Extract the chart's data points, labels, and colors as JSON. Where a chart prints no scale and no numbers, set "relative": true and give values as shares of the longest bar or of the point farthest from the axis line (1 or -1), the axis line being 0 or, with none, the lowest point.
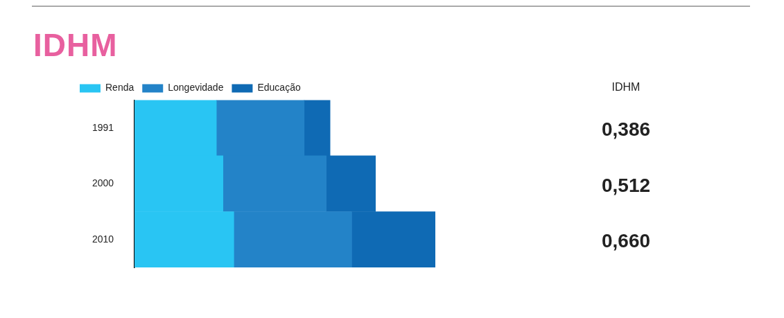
{
  "chart_data": {
    "type": "bar",
    "title": "IDHM",
    "orientation": "horizontal",
    "stacked": true,
    "relative": true,
    "legend": "top left",
    "categories": [
      "1991",
      "2000",
      "2010"
    ],
    "series": [
      {
        "name": "Renda",
        "color": "#29c5f3",
        "values": [
          0.272,
          0.294,
          0.33
        ]
      },
      {
        "name": "Longevidade",
        "color": "#2383c8",
        "values": [
          0.292,
          0.343,
          0.392
        ]
      },
      {
        "name": "Educação",
        "color": "#0f6ab4",
        "values": [
          0.086,
          0.164,
          0.278
        ]
      }
    ],
    "annotations": [
      "IDHM",
      "0,386",
      "0,512",
      "0,660"
    ]
  }
}
